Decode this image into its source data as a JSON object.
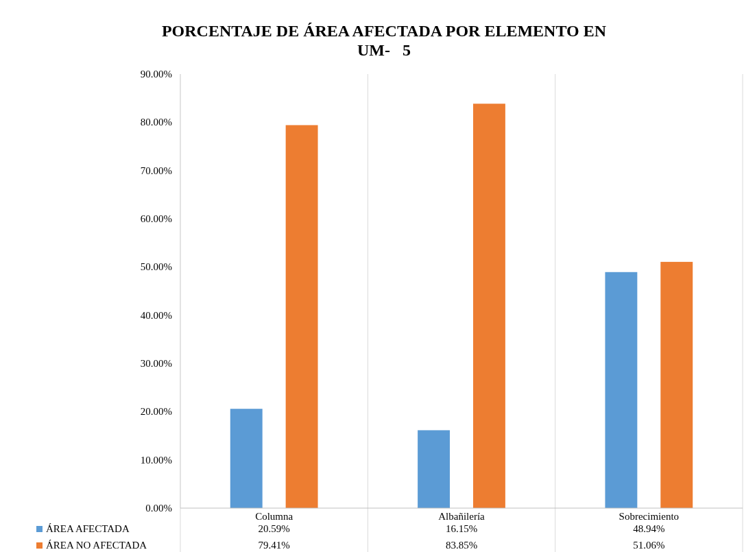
{
  "chart_data": {
    "type": "bar",
    "title": "PORCENTAJE DE ÁREA AFECTADA POR ELEMENTO EN\nUM-   5",
    "categories": [
      "Columna",
      "Albañilería",
      "Sobrecimiento"
    ],
    "series": [
      {
        "name": "ÁREA AFECTADA",
        "color": "#5b9bd5",
        "values": [
          20.59,
          16.15,
          48.94
        ],
        "value_labels": [
          "20.59%",
          "16.15%",
          "48.94%"
        ]
      },
      {
        "name": "ÁREA NO AFECTADA",
        "color": "#ed7d31",
        "values": [
          79.41,
          83.85,
          51.06
        ],
        "value_labels": [
          "79.41%",
          "83.85%",
          "51.06%"
        ]
      }
    ],
    "ylim": [
      0,
      90
    ],
    "yticks": [
      {
        "value": 0,
        "label": "0.00%"
      },
      {
        "value": 10,
        "label": "10.00%"
      },
      {
        "value": 20,
        "label": "20.00%"
      },
      {
        "value": 30,
        "label": "30.00%"
      },
      {
        "value": 40,
        "label": "40.00%"
      },
      {
        "value": 50,
        "label": "50.00%"
      },
      {
        "value": 60,
        "label": "60.00%"
      },
      {
        "value": 70,
        "label": "70.00%"
      },
      {
        "value": 80,
        "label": "80.00%"
      },
      {
        "value": 90,
        "label": "90.00%"
      }
    ],
    "legend": "bottom"
  }
}
